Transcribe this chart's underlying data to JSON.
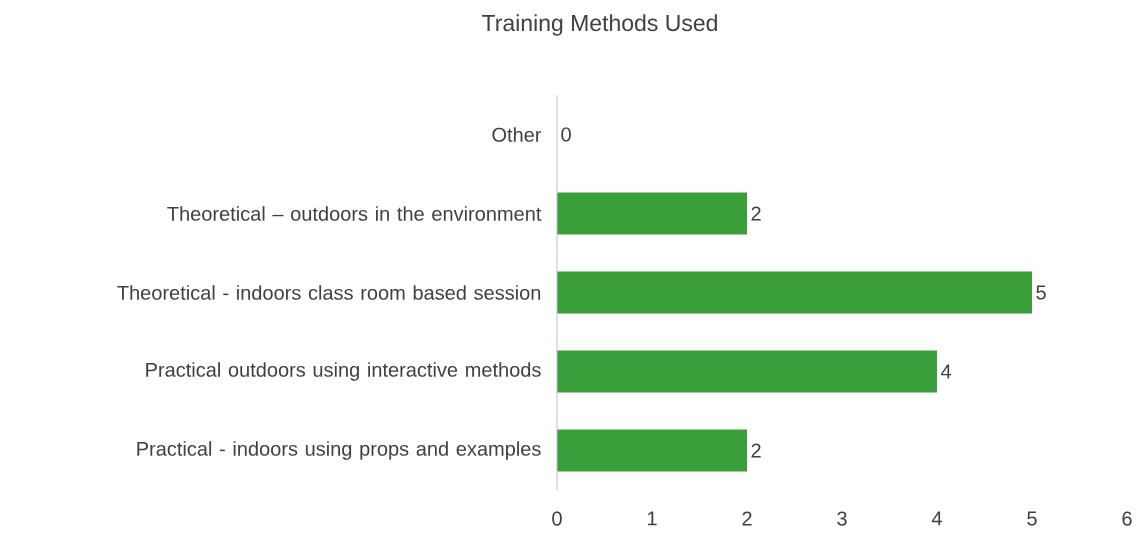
{
  "chart_data": {
    "type": "bar",
    "orientation": "horizontal",
    "title": "Training Methods Used",
    "categories": [
      "Other",
      "Theoretical – outdoors in the environment",
      "Theoretical  - indoors class room based session",
      "Practical outdoors using interactive methods",
      "Practical - indoors using props and examples"
    ],
    "values": [
      0,
      2,
      5,
      4,
      2
    ],
    "color": "#3a9e3a",
    "xlim": [
      0,
      6
    ],
    "xticks": [
      0,
      1,
      2,
      3,
      4,
      5,
      6
    ],
    "data_labels": true
  }
}
